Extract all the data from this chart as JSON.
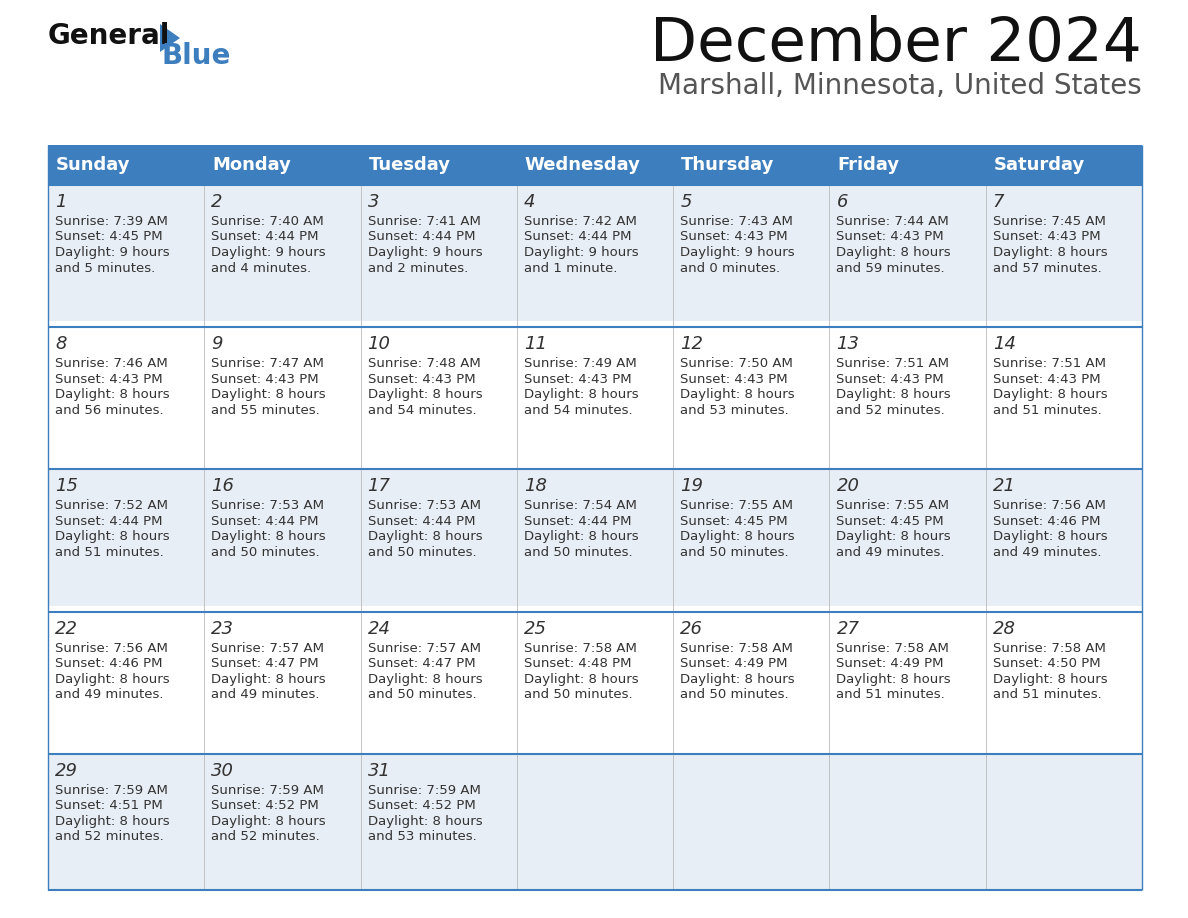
{
  "title": "December 2024",
  "subtitle": "Marshall, Minnesota, United States",
  "header_color": "#3d7ebf",
  "header_text_color": "#ffffff",
  "day_names": [
    "Sunday",
    "Monday",
    "Tuesday",
    "Wednesday",
    "Thursday",
    "Friday",
    "Saturday"
  ],
  "weeks": [
    [
      {
        "day": "1",
        "sunrise": "7:39 AM",
        "sunset": "4:45 PM",
        "daylight_line1": "9 hours",
        "daylight_line2": "and 5 minutes."
      },
      {
        "day": "2",
        "sunrise": "7:40 AM",
        "sunset": "4:44 PM",
        "daylight_line1": "9 hours",
        "daylight_line2": "and 4 minutes."
      },
      {
        "day": "3",
        "sunrise": "7:41 AM",
        "sunset": "4:44 PM",
        "daylight_line1": "9 hours",
        "daylight_line2": "and 2 minutes."
      },
      {
        "day": "4",
        "sunrise": "7:42 AM",
        "sunset": "4:44 PM",
        "daylight_line1": "9 hours",
        "daylight_line2": "and 1 minute."
      },
      {
        "day": "5",
        "sunrise": "7:43 AM",
        "sunset": "4:43 PM",
        "daylight_line1": "9 hours",
        "daylight_line2": "and 0 minutes."
      },
      {
        "day": "6",
        "sunrise": "7:44 AM",
        "sunset": "4:43 PM",
        "daylight_line1": "8 hours",
        "daylight_line2": "and 59 minutes."
      },
      {
        "day": "7",
        "sunrise": "7:45 AM",
        "sunset": "4:43 PM",
        "daylight_line1": "8 hours",
        "daylight_line2": "and 57 minutes."
      }
    ],
    [
      {
        "day": "8",
        "sunrise": "7:46 AM",
        "sunset": "4:43 PM",
        "daylight_line1": "8 hours",
        "daylight_line2": "and 56 minutes."
      },
      {
        "day": "9",
        "sunrise": "7:47 AM",
        "sunset": "4:43 PM",
        "daylight_line1": "8 hours",
        "daylight_line2": "and 55 minutes."
      },
      {
        "day": "10",
        "sunrise": "7:48 AM",
        "sunset": "4:43 PM",
        "daylight_line1": "8 hours",
        "daylight_line2": "and 54 minutes."
      },
      {
        "day": "11",
        "sunrise": "7:49 AM",
        "sunset": "4:43 PM",
        "daylight_line1": "8 hours",
        "daylight_line2": "and 54 minutes."
      },
      {
        "day": "12",
        "sunrise": "7:50 AM",
        "sunset": "4:43 PM",
        "daylight_line1": "8 hours",
        "daylight_line2": "and 53 minutes."
      },
      {
        "day": "13",
        "sunrise": "7:51 AM",
        "sunset": "4:43 PM",
        "daylight_line1": "8 hours",
        "daylight_line2": "and 52 minutes."
      },
      {
        "day": "14",
        "sunrise": "7:51 AM",
        "sunset": "4:43 PM",
        "daylight_line1": "8 hours",
        "daylight_line2": "and 51 minutes."
      }
    ],
    [
      {
        "day": "15",
        "sunrise": "7:52 AM",
        "sunset": "4:44 PM",
        "daylight_line1": "8 hours",
        "daylight_line2": "and 51 minutes."
      },
      {
        "day": "16",
        "sunrise": "7:53 AM",
        "sunset": "4:44 PM",
        "daylight_line1": "8 hours",
        "daylight_line2": "and 50 minutes."
      },
      {
        "day": "17",
        "sunrise": "7:53 AM",
        "sunset": "4:44 PM",
        "daylight_line1": "8 hours",
        "daylight_line2": "and 50 minutes."
      },
      {
        "day": "18",
        "sunrise": "7:54 AM",
        "sunset": "4:44 PM",
        "daylight_line1": "8 hours",
        "daylight_line2": "and 50 minutes."
      },
      {
        "day": "19",
        "sunrise": "7:55 AM",
        "sunset": "4:45 PM",
        "daylight_line1": "8 hours",
        "daylight_line2": "and 50 minutes."
      },
      {
        "day": "20",
        "sunrise": "7:55 AM",
        "sunset": "4:45 PM",
        "daylight_line1": "8 hours",
        "daylight_line2": "and 49 minutes."
      },
      {
        "day": "21",
        "sunrise": "7:56 AM",
        "sunset": "4:46 PM",
        "daylight_line1": "8 hours",
        "daylight_line2": "and 49 minutes."
      }
    ],
    [
      {
        "day": "22",
        "sunrise": "7:56 AM",
        "sunset": "4:46 PM",
        "daylight_line1": "8 hours",
        "daylight_line2": "and 49 minutes."
      },
      {
        "day": "23",
        "sunrise": "7:57 AM",
        "sunset": "4:47 PM",
        "daylight_line1": "8 hours",
        "daylight_line2": "and 49 minutes."
      },
      {
        "day": "24",
        "sunrise": "7:57 AM",
        "sunset": "4:47 PM",
        "daylight_line1": "8 hours",
        "daylight_line2": "and 50 minutes."
      },
      {
        "day": "25",
        "sunrise": "7:58 AM",
        "sunset": "4:48 PM",
        "daylight_line1": "8 hours",
        "daylight_line2": "and 50 minutes."
      },
      {
        "day": "26",
        "sunrise": "7:58 AM",
        "sunset": "4:49 PM",
        "daylight_line1": "8 hours",
        "daylight_line2": "and 50 minutes."
      },
      {
        "day": "27",
        "sunrise": "7:58 AM",
        "sunset": "4:49 PM",
        "daylight_line1": "8 hours",
        "daylight_line2": "and 51 minutes."
      },
      {
        "day": "28",
        "sunrise": "7:58 AM",
        "sunset": "4:50 PM",
        "daylight_line1": "8 hours",
        "daylight_line2": "and 51 minutes."
      }
    ],
    [
      {
        "day": "29",
        "sunrise": "7:59 AM",
        "sunset": "4:51 PM",
        "daylight_line1": "8 hours",
        "daylight_line2": "and 52 minutes."
      },
      {
        "day": "30",
        "sunrise": "7:59 AM",
        "sunset": "4:52 PM",
        "daylight_line1": "8 hours",
        "daylight_line2": "and 52 minutes."
      },
      {
        "day": "31",
        "sunrise": "7:59 AM",
        "sunset": "4:52 PM",
        "daylight_line1": "8 hours",
        "daylight_line2": "and 53 minutes."
      },
      null,
      null,
      null,
      null
    ]
  ],
  "bg_color": "#ffffff",
  "row_bg_colors": [
    "#e8eef5",
    "#ffffff",
    "#e8eef5",
    "#ffffff",
    "#e8eef5"
  ],
  "text_color": "#333333",
  "logo_black_color": "#111111",
  "logo_blue_color": "#3d7ebf",
  "divider_color": "#3d7ebf",
  "title_fontsize": 44,
  "subtitle_fontsize": 20,
  "header_fontsize": 13,
  "day_num_fontsize": 13,
  "cell_text_fontsize": 9.5
}
